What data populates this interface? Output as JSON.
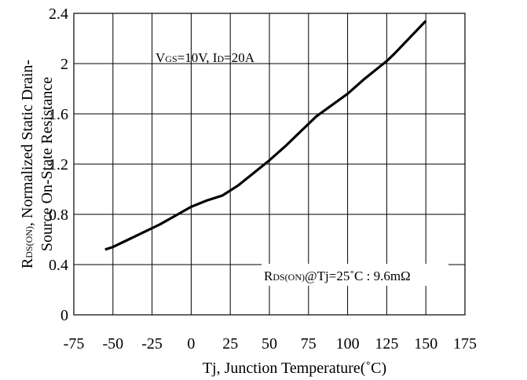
{
  "chart_data": {
    "type": "line",
    "xlabel": "Tj, Junction Temperature(˚C)",
    "ylabel_parts": {
      "r": "R",
      "sub": "DS(ON)",
      "line1_rest": ", Normalized Static Drain-",
      "line2": "Source On-State Resistance"
    },
    "xlim": [
      -75,
      175
    ],
    "ylim": [
      0,
      2.4
    ],
    "x_ticks": [
      "-75",
      "-50",
      "-25",
      "0",
      "25",
      "50",
      "75",
      "100",
      "125",
      "150",
      "175"
    ],
    "y_ticks": [
      "0",
      "0.4",
      "0.8",
      "1.2",
      "1.6",
      "2",
      "2.4"
    ],
    "x_tick_values": [
      -75,
      -50,
      -25,
      0,
      25,
      50,
      75,
      100,
      125,
      150,
      175
    ],
    "y_tick_values": [
      0,
      0.4,
      0.8,
      1.2,
      1.6,
      2.0,
      2.4
    ],
    "grid": true,
    "series": [
      {
        "x": [
          -55,
          -50,
          -40,
          -30,
          -20,
          -10,
          0,
          10,
          20,
          25,
          30,
          40,
          50,
          60,
          70,
          75,
          80,
          90,
          100,
          110,
          120,
          125,
          130,
          140,
          150
        ],
        "y": [
          0.52,
          0.54,
          0.6,
          0.66,
          0.72,
          0.79,
          0.86,
          0.91,
          0.95,
          0.99,
          1.03,
          1.13,
          1.23,
          1.34,
          1.46,
          1.52,
          1.58,
          1.67,
          1.76,
          1.87,
          1.97,
          2.02,
          2.08,
          2.21,
          2.34
        ]
      }
    ],
    "annotations": {
      "conditions": {
        "v": "V",
        "v_sub": "GS",
        "v_rest": "=10V, I",
        "i_sub": "D",
        "i_rest": "=20A"
      },
      "reference": {
        "r": "R",
        "r_sub": "DS(ON)",
        "rest": "@Tj=25˚C : 9.6mΩ"
      }
    }
  }
}
